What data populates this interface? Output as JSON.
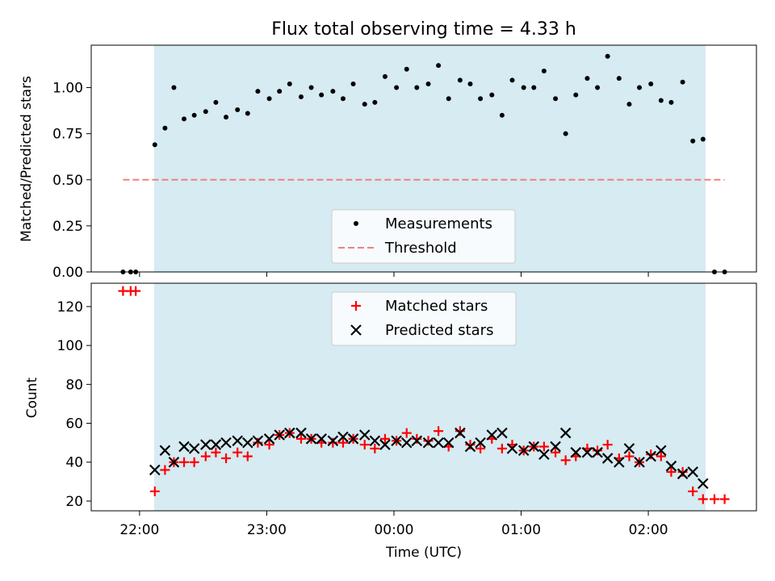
{
  "chart_data": [
    {
      "type": "scatter",
      "title": "Flux total observing time = 4.33 h",
      "ylabel": "Matched/Predicted stars",
      "xlabel": "",
      "ylim": [
        0,
        1.23
      ],
      "yticks": [
        "0.00",
        "0.25",
        "0.50",
        "0.75",
        "1.00"
      ],
      "grid": false,
      "legend_position": "lower-center",
      "shaded_x_range": [
        22.115,
        26.45
      ],
      "series": [
        {
          "name": "Measurements",
          "marker": "dot",
          "color": "#000000",
          "x": [
            21.87,
            21.93,
            21.97,
            22.12,
            22.2,
            22.27,
            22.35,
            22.43,
            22.52,
            22.6,
            22.68,
            22.77,
            22.85,
            22.93,
            23.02,
            23.1,
            23.18,
            23.27,
            23.35,
            23.43,
            23.52,
            23.6,
            23.68,
            23.77,
            23.85,
            23.93,
            24.02,
            24.1,
            24.18,
            24.27,
            24.35,
            24.43,
            24.52,
            24.6,
            24.68,
            24.77,
            24.85,
            24.93,
            25.02,
            25.1,
            25.18,
            25.27,
            25.35,
            25.43,
            25.52,
            25.6,
            25.68,
            25.77,
            25.85,
            25.93,
            26.02,
            26.1,
            26.18,
            26.27,
            26.35,
            26.43,
            26.52,
            26.6
          ],
          "y": [
            0.0,
            0.0,
            0.0,
            0.69,
            0.78,
            1.0,
            0.83,
            0.85,
            0.87,
            0.92,
            0.84,
            0.88,
            0.86,
            0.98,
            0.94,
            0.98,
            1.02,
            0.95,
            1.0,
            0.96,
            0.98,
            0.94,
            1.02,
            0.91,
            0.92,
            1.06,
            1.0,
            1.1,
            1.0,
            1.02,
            1.12,
            0.94,
            1.04,
            1.02,
            0.94,
            0.96,
            0.85,
            1.04,
            1.0,
            1.0,
            1.09,
            0.94,
            0.75,
            0.96,
            1.05,
            1.0,
            1.17,
            1.05,
            0.91,
            1.0,
            1.02,
            0.93,
            0.92,
            1.03,
            0.71,
            0.72,
            0.0,
            0.0
          ]
        },
        {
          "name": "Threshold",
          "style": "dashed",
          "color": "#f08080",
          "x": [
            21.87,
            26.6
          ],
          "y": [
            0.5,
            0.5
          ]
        }
      ]
    },
    {
      "type": "scatter",
      "title": "",
      "ylabel": "Count",
      "xlabel": "Time (UTC)",
      "ylim": [
        15,
        132
      ],
      "yticks": [
        "20",
        "40",
        "60",
        "80",
        "100",
        "120"
      ],
      "xlim": [
        21.62,
        26.85
      ],
      "xticks": [
        {
          "v": 22,
          "label": "22:00"
        },
        {
          "v": 23,
          "label": "23:00"
        },
        {
          "v": 24,
          "label": "00:00"
        },
        {
          "v": 25,
          "label": "01:00"
        },
        {
          "v": 26,
          "label": "02:00"
        }
      ],
      "grid": false,
      "legend_position": "top-center",
      "shaded_x_range": [
        22.115,
        26.45
      ],
      "series": [
        {
          "name": "Matched stars",
          "marker": "plus",
          "color": "#ff0000",
          "x": [
            21.87,
            21.93,
            21.97,
            22.12,
            22.2,
            22.27,
            22.35,
            22.43,
            22.52,
            22.6,
            22.68,
            22.77,
            22.85,
            22.93,
            23.02,
            23.1,
            23.18,
            23.27,
            23.35,
            23.43,
            23.52,
            23.6,
            23.68,
            23.77,
            23.85,
            23.93,
            24.02,
            24.1,
            24.18,
            24.27,
            24.35,
            24.43,
            24.52,
            24.6,
            24.68,
            24.77,
            24.85,
            24.93,
            25.02,
            25.1,
            25.18,
            25.27,
            25.35,
            25.43,
            25.52,
            25.6,
            25.68,
            25.77,
            25.85,
            25.93,
            26.02,
            26.1,
            26.18,
            26.27,
            26.35,
            26.43,
            26.52,
            26.6
          ],
          "y": [
            128,
            128,
            128,
            25,
            36,
            40,
            40,
            40,
            43,
            45,
            42,
            45,
            43,
            50,
            49,
            54,
            55,
            52,
            52,
            50,
            50,
            50,
            52,
            49,
            47,
            52,
            51,
            55,
            52,
            51,
            56,
            48,
            56,
            49,
            47,
            52,
            47,
            49,
            46,
            48,
            48,
            45,
            41,
            43,
            47,
            46,
            49,
            42,
            43,
            40,
            44,
            43,
            35,
            35,
            25,
            21,
            21,
            21
          ]
        },
        {
          "name": "Predicted stars",
          "marker": "x",
          "color": "#000000",
          "x": [
            22.12,
            22.2,
            22.27,
            22.35,
            22.43,
            22.52,
            22.6,
            22.68,
            22.77,
            22.85,
            22.93,
            23.02,
            23.1,
            23.18,
            23.27,
            23.35,
            23.43,
            23.52,
            23.6,
            23.68,
            23.77,
            23.85,
            23.93,
            24.02,
            24.1,
            24.18,
            24.27,
            24.35,
            24.43,
            24.52,
            24.6,
            24.68,
            24.77,
            24.85,
            24.93,
            25.02,
            25.1,
            25.18,
            25.27,
            25.35,
            25.43,
            25.52,
            25.6,
            25.68,
            25.77,
            25.85,
            25.93,
            26.02,
            26.1,
            26.18,
            26.27,
            26.35,
            26.43
          ],
          "y": [
            36,
            46,
            40,
            48,
            47,
            49,
            49,
            50,
            51,
            50,
            51,
            52,
            54,
            55,
            55,
            52,
            52,
            51,
            53,
            52,
            54,
            51,
            49,
            51,
            50,
            51,
            50,
            50,
            50,
            55,
            48,
            50,
            54,
            55,
            47,
            46,
            48,
            44,
            48,
            55,
            45,
            45,
            45,
            42,
            40,
            47,
            40,
            43,
            46,
            38,
            34,
            35,
            29
          ]
        }
      ]
    }
  ]
}
